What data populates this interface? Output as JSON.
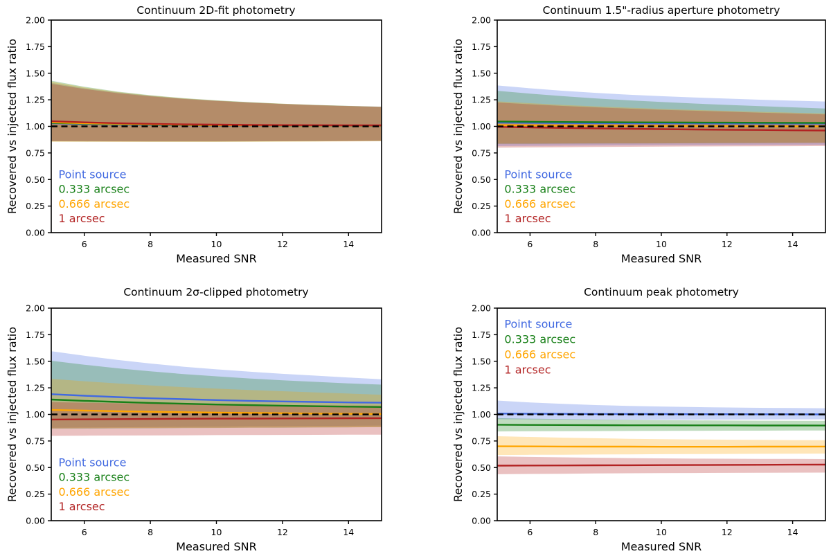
{
  "figure": {
    "background": "#ffffff"
  },
  "series_colors": {
    "blue": "#4169e1",
    "green": "#188018",
    "orange": "#ffa500",
    "red": "#b22222"
  },
  "series_labels": [
    "Point source",
    "0.333 arcsec",
    "0.666 arcsec",
    "1 arcsec"
  ],
  "chart_data": [
    {
      "type": "line",
      "title": "Continuum 2D-fit photometry",
      "xlabel": "Measured SNR",
      "ylabel": "Recovered vs injected flux ratio",
      "xlim": [
        5,
        15
      ],
      "ylim": [
        0,
        2
      ],
      "xticks": [
        6,
        8,
        10,
        12,
        14
      ],
      "yticks": [
        "0.00",
        "0.25",
        "0.50",
        "0.75",
        "1.00",
        "1.25",
        "1.50",
        "1.75",
        "2.00"
      ],
      "grid": false,
      "reference_line": {
        "y": 1.0,
        "color": "#000000",
        "style": "dashed"
      },
      "legend": {
        "position": "lower left",
        "x": 5.22,
        "y_baselines": [
          0.513,
          0.373,
          0.235,
          0.097
        ]
      },
      "x": [
        5,
        6,
        7,
        8,
        9,
        10,
        11,
        12,
        13,
        14,
        15
      ],
      "series": [
        {
          "name": "Point source",
          "color": "#4169e1",
          "values": [
            1.03,
            1.023,
            1.017,
            1.013,
            1.01,
            1.008,
            1.006,
            1.005,
            1.004,
            1.004,
            1.003
          ],
          "band_upper": [
            1.41,
            1.36,
            1.32,
            1.288,
            1.262,
            1.242,
            1.226,
            1.212,
            1.201,
            1.192,
            1.185
          ],
          "band_lower": [
            0.862,
            0.861,
            0.86,
            0.859,
            0.859,
            0.859,
            0.86,
            0.861,
            0.862,
            0.863,
            0.865
          ]
        },
        {
          "name": "0.333 arcsec",
          "color": "#188018",
          "values": [
            1.033,
            1.026,
            1.02,
            1.016,
            1.013,
            1.01,
            1.009,
            1.007,
            1.006,
            1.006,
            1.005
          ],
          "band_upper": [
            1.43,
            1.373,
            1.328,
            1.293,
            1.266,
            1.245,
            1.228,
            1.214,
            1.202,
            1.193,
            1.185
          ],
          "band_lower": [
            0.858,
            0.857,
            0.857,
            0.856,
            0.856,
            0.856,
            0.857,
            0.858,
            0.859,
            0.861,
            0.862
          ]
        },
        {
          "name": "0.666 arcsec",
          "color": "#ffa500",
          "values": [
            1.038,
            1.03,
            1.024,
            1.019,
            1.015,
            1.012,
            1.01,
            1.009,
            1.008,
            1.007,
            1.007
          ],
          "band_upper": [
            1.42,
            1.366,
            1.323,
            1.29,
            1.264,
            1.243,
            1.227,
            1.213,
            1.201,
            1.192,
            1.184
          ],
          "band_lower": [
            0.855,
            0.855,
            0.854,
            0.854,
            0.854,
            0.854,
            0.855,
            0.856,
            0.857,
            0.858,
            0.86
          ]
        },
        {
          "name": "1 arcsec",
          "color": "#b22222",
          "values": [
            1.048,
            1.038,
            1.03,
            1.024,
            1.019,
            1.016,
            1.014,
            1.012,
            1.011,
            1.01,
            1.01
          ],
          "band_upper": [
            1.4,
            1.352,
            1.313,
            1.283,
            1.258,
            1.239,
            1.223,
            1.21,
            1.199,
            1.19,
            1.183
          ],
          "band_lower": [
            0.86,
            0.859,
            0.858,
            0.858,
            0.858,
            0.858,
            0.859,
            0.86,
            0.861,
            0.862,
            0.864
          ]
        }
      ]
    },
    {
      "type": "line",
      "title": "Continuum 1.5\"-radius aperture photometry",
      "xlabel": "Measured SNR",
      "ylabel": "Recovered vs injected flux ratio",
      "xlim": [
        5,
        15
      ],
      "ylim": [
        0,
        2
      ],
      "xticks": [
        6,
        8,
        10,
        12,
        14
      ],
      "yticks": [
        "0.00",
        "0.25",
        "0.50",
        "0.75",
        "1.00",
        "1.25",
        "1.50",
        "1.75",
        "2.00"
      ],
      "grid": false,
      "reference_line": {
        "y": 1.0,
        "color": "#000000",
        "style": "dashed"
      },
      "legend": {
        "position": "lower left",
        "x": 5.22,
        "y_baselines": [
          0.513,
          0.373,
          0.235,
          0.097
        ]
      },
      "x": [
        5,
        6,
        7,
        8,
        9,
        10,
        11,
        12,
        13,
        14,
        15
      ],
      "series": [
        {
          "name": "Point source",
          "color": "#4169e1",
          "values": [
            1.035,
            1.033,
            1.031,
            1.03,
            1.029,
            1.028,
            1.028,
            1.027,
            1.027,
            1.026,
            1.026
          ],
          "band_upper": [
            1.385,
            1.358,
            1.335,
            1.315,
            1.298,
            1.284,
            1.272,
            1.261,
            1.251,
            1.242,
            1.234
          ],
          "band_lower": [
            0.815,
            0.817,
            0.818,
            0.82,
            0.821,
            0.822,
            0.823,
            0.824,
            0.825,
            0.826,
            0.827
          ]
        },
        {
          "name": "0.333 arcsec",
          "color": "#188018",
          "values": [
            1.045,
            1.043,
            1.041,
            1.039,
            1.038,
            1.037,
            1.036,
            1.035,
            1.034,
            1.033,
            1.032
          ],
          "band_upper": [
            1.335,
            1.308,
            1.284,
            1.263,
            1.245,
            1.229,
            1.215,
            1.202,
            1.19,
            1.179,
            1.168
          ],
          "band_lower": [
            0.835,
            0.836,
            0.837,
            0.838,
            0.839,
            0.84,
            0.841,
            0.842,
            0.843,
            0.844,
            0.845
          ]
        },
        {
          "name": "0.666 arcsec",
          "color": "#ffa500",
          "values": [
            1.012,
            1.01,
            1.008,
            1.006,
            1.005,
            1.004,
            1.003,
            1.002,
            1.001,
            1.0,
            1.0
          ],
          "band_upper": [
            1.235,
            1.218,
            1.202,
            1.188,
            1.176,
            1.165,
            1.155,
            1.146,
            1.137,
            1.129,
            1.121
          ],
          "band_lower": [
            0.838,
            0.839,
            0.84,
            0.841,
            0.841,
            0.842,
            0.843,
            0.844,
            0.845,
            0.846,
            0.847
          ]
        },
        {
          "name": "1 arcsec",
          "color": "#b22222",
          "values": [
            0.995,
            0.99,
            0.985,
            0.981,
            0.977,
            0.974,
            0.971,
            0.968,
            0.966,
            0.963,
            0.961
          ],
          "band_upper": [
            1.225,
            1.208,
            1.192,
            1.179,
            1.167,
            1.156,
            1.147,
            1.138,
            1.129,
            1.121,
            1.113
          ],
          "band_lower": [
            0.8,
            0.802,
            0.804,
            0.806,
            0.808,
            0.809,
            0.811,
            0.812,
            0.813,
            0.814,
            0.815
          ]
        }
      ]
    },
    {
      "type": "line",
      "title": "Continuum 2σ-clipped photometry",
      "xlabel": "Measured SNR",
      "ylabel": "Recovered vs injected flux ratio",
      "xlim": [
        5,
        15
      ],
      "ylim": [
        0,
        2
      ],
      "xticks": [
        6,
        8,
        10,
        12,
        14
      ],
      "yticks": [
        "0.00",
        "0.25",
        "0.50",
        "0.75",
        "1.00",
        "1.25",
        "1.50",
        "1.75",
        "2.00"
      ],
      "grid": false,
      "reference_line": {
        "y": 1.0,
        "color": "#000000",
        "style": "dashed"
      },
      "legend": {
        "position": "lower left",
        "x": 5.22,
        "y_baselines": [
          0.513,
          0.373,
          0.235,
          0.097
        ]
      },
      "x": [
        5,
        6,
        7,
        8,
        9,
        10,
        11,
        12,
        13,
        14,
        15
      ],
      "series": [
        {
          "name": "Point source",
          "color": "#4169e1",
          "values": [
            1.19,
            1.176,
            1.163,
            1.152,
            1.143,
            1.135,
            1.128,
            1.122,
            1.117,
            1.113,
            1.11
          ],
          "band_upper": [
            1.595,
            1.552,
            1.513,
            1.479,
            1.449,
            1.424,
            1.402,
            1.382,
            1.365,
            1.347,
            1.33
          ],
          "band_lower": [
            0.875,
            0.877,
            0.879,
            0.881,
            0.883,
            0.885,
            0.887,
            0.889,
            0.891,
            0.893,
            0.895
          ]
        },
        {
          "name": "0.333 arcsec",
          "color": "#188018",
          "values": [
            1.14,
            1.128,
            1.117,
            1.108,
            1.1,
            1.093,
            1.087,
            1.082,
            1.077,
            1.073,
            1.07
          ],
          "band_upper": [
            1.505,
            1.468,
            1.434,
            1.405,
            1.38,
            1.358,
            1.338,
            1.321,
            1.306,
            1.292,
            1.28
          ],
          "band_lower": [
            0.865,
            0.866,
            0.868,
            0.869,
            0.871,
            0.872,
            0.874,
            0.875,
            0.877,
            0.878,
            0.88
          ]
        },
        {
          "name": "0.666 arcsec",
          "color": "#ffa500",
          "values": [
            1.042,
            1.036,
            1.03,
            1.025,
            1.021,
            1.017,
            1.014,
            1.011,
            1.008,
            1.006,
            1.004
          ],
          "band_upper": [
            1.335,
            1.312,
            1.291,
            1.273,
            1.257,
            1.243,
            1.23,
            1.218,
            1.207,
            1.196,
            1.185
          ],
          "band_lower": [
            0.87,
            0.871,
            0.872,
            0.873,
            0.874,
            0.875,
            0.876,
            0.877,
            0.878,
            0.879,
            0.88
          ]
        },
        {
          "name": "1 arcsec",
          "color": "#b22222",
          "values": [
            0.952,
            0.954,
            0.956,
            0.957,
            0.959,
            0.96,
            0.961,
            0.962,
            0.963,
            0.964,
            0.965
          ],
          "band_upper": [
            1.115,
            1.11,
            1.105,
            1.101,
            1.097,
            1.094,
            1.091,
            1.088,
            1.086,
            1.084,
            1.082
          ],
          "band_lower": [
            0.798,
            0.8,
            0.801,
            0.802,
            0.803,
            0.805,
            0.806,
            0.807,
            0.808,
            0.809,
            0.81
          ]
        }
      ]
    },
    {
      "type": "line",
      "title": "Continuum peak photometry",
      "xlabel": "Measured SNR",
      "ylabel": "Recovered vs injected flux ratio",
      "xlim": [
        5,
        15
      ],
      "ylim": [
        0,
        2
      ],
      "xticks": [
        6,
        8,
        10,
        12,
        14
      ],
      "yticks": [
        "0.00",
        "0.25",
        "0.50",
        "0.75",
        "1.00",
        "1.25",
        "1.50",
        "1.75",
        "2.00"
      ],
      "grid": false,
      "reference_line": {
        "y": 1.0,
        "color": "#000000",
        "style": "dashed"
      },
      "legend": {
        "position": "upper left",
        "x": 5.22,
        "y_baselines": [
          1.815,
          1.672,
          1.528,
          1.385
        ]
      },
      "x": [
        5,
        6,
        7,
        8,
        9,
        10,
        11,
        12,
        13,
        14,
        15
      ],
      "series": [
        {
          "name": "Point source",
          "color": "#4169e1",
          "values": [
            1.008,
            1.006,
            1.005,
            1.004,
            1.003,
            1.003,
            1.002,
            1.002,
            1.001,
            1.001,
            1.0
          ],
          "band_upper": [
            1.13,
            1.113,
            1.099,
            1.088,
            1.08,
            1.074,
            1.069,
            1.065,
            1.062,
            1.06,
            1.058
          ],
          "band_lower": [
            0.955,
            0.953,
            0.951,
            0.95,
            0.95,
            0.95,
            0.95,
            0.951,
            0.952,
            0.953,
            0.954
          ]
        },
        {
          "name": "0.333 arcsec",
          "color": "#188018",
          "values": [
            0.903,
            0.901,
            0.9,
            0.899,
            0.898,
            0.898,
            0.897,
            0.897,
            0.896,
            0.896,
            0.895
          ],
          "band_upper": [
            0.965,
            0.96,
            0.956,
            0.952,
            0.949,
            0.946,
            0.944,
            0.942,
            0.941,
            0.94,
            0.939
          ],
          "band_lower": [
            0.84,
            0.841,
            0.842,
            0.843,
            0.844,
            0.845,
            0.846,
            0.847,
            0.847,
            0.848,
            0.849
          ]
        },
        {
          "name": "0.666 arcsec",
          "color": "#ffa500",
          "values": [
            0.7,
            0.699,
            0.698,
            0.697,
            0.697,
            0.696,
            0.696,
            0.696,
            0.697,
            0.697,
            0.698
          ],
          "band_upper": [
            0.795,
            0.788,
            0.781,
            0.776,
            0.771,
            0.767,
            0.764,
            0.762,
            0.76,
            0.758,
            0.757
          ],
          "band_lower": [
            0.618,
            0.62,
            0.621,
            0.623,
            0.624,
            0.626,
            0.627,
            0.628,
            0.629,
            0.63,
            0.631
          ]
        },
        {
          "name": "1 arcsec",
          "color": "#b22222",
          "values": [
            0.518,
            0.519,
            0.52,
            0.521,
            0.522,
            0.523,
            0.524,
            0.525,
            0.526,
            0.527,
            0.528
          ],
          "band_upper": [
            0.605,
            0.6,
            0.596,
            0.592,
            0.589,
            0.586,
            0.584,
            0.583,
            0.582,
            0.581,
            0.58
          ],
          "band_lower": [
            0.437,
            0.44,
            0.442,
            0.444,
            0.446,
            0.448,
            0.449,
            0.45,
            0.451,
            0.452,
            0.453
          ]
        }
      ]
    }
  ]
}
